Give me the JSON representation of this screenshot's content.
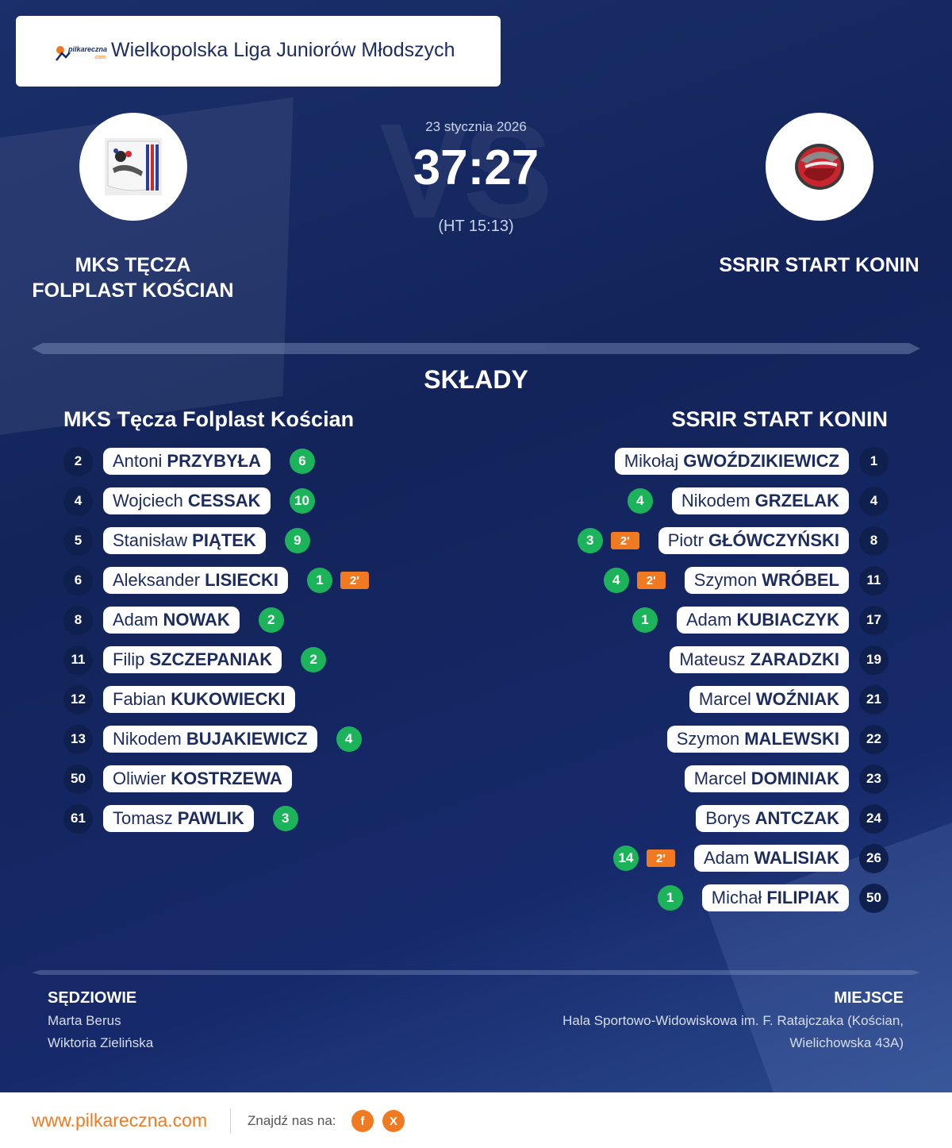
{
  "header": {
    "logo_text": "pilkareczna",
    "logo_sub": ".com",
    "league": "Wielkopolska Liga Juniorów Młodszych"
  },
  "match": {
    "date": "23 stycznia 2026",
    "score": "37:27",
    "halftime": "(HT 15:13)",
    "vs_watermark": "VS",
    "home_team": [
      "MKS TĘCZA",
      "FOLPLAST KOŚCIAN"
    ],
    "away_team": "SSRIR START KONIN"
  },
  "lineups": {
    "title": "SKŁADY",
    "home_title": "MKS Tęcza Folplast Kościan",
    "away_title": "SSRIR START KONIN",
    "home": [
      {
        "number": "2",
        "first": "Antoni",
        "last": "PRZYBYŁA",
        "goals": "6",
        "susp": ""
      },
      {
        "number": "4",
        "first": "Wojciech",
        "last": "CESSAK",
        "goals": "10",
        "susp": ""
      },
      {
        "number": "5",
        "first": "Stanisław",
        "last": "PIĄTEK",
        "goals": "9",
        "susp": ""
      },
      {
        "number": "6",
        "first": "Aleksander",
        "last": "LISIECKI",
        "goals": "1",
        "susp": "2'"
      },
      {
        "number": "8",
        "first": "Adam",
        "last": "NOWAK",
        "goals": "2",
        "susp": ""
      },
      {
        "number": "11",
        "first": "Filip",
        "last": "SZCZEPANIAK",
        "goals": "2",
        "susp": ""
      },
      {
        "number": "12",
        "first": "Fabian",
        "last": "KUKOWIECKI",
        "goals": "",
        "susp": ""
      },
      {
        "number": "13",
        "first": "Nikodem",
        "last": "BUJAKIEWICZ",
        "goals": "4",
        "susp": ""
      },
      {
        "number": "50",
        "first": "Oliwier",
        "last": "KOSTRZEWA",
        "goals": "",
        "susp": ""
      },
      {
        "number": "61",
        "first": "Tomasz",
        "last": "PAWLIK",
        "goals": "3",
        "susp": ""
      }
    ],
    "away": [
      {
        "number": "1",
        "first": "Mikołaj",
        "last": "GWOŹDZIKIEWICZ",
        "goals": "",
        "susp": ""
      },
      {
        "number": "4",
        "first": "Nikodem",
        "last": "GRZELAK",
        "goals": "4",
        "susp": ""
      },
      {
        "number": "8",
        "first": "Piotr",
        "last": "GŁÓWCZYŃSKI",
        "goals": "3",
        "susp": "2'"
      },
      {
        "number": "11",
        "first": "Szymon",
        "last": "WRÓBEL",
        "goals": "4",
        "susp": "2'"
      },
      {
        "number": "17",
        "first": "Adam",
        "last": "KUBIACZYK",
        "goals": "1",
        "susp": ""
      },
      {
        "number": "19",
        "first": "Mateusz",
        "last": "ZARADZKI",
        "goals": "",
        "susp": ""
      },
      {
        "number": "21",
        "first": "Marcel",
        "last": "WOŹNIAK",
        "goals": "",
        "susp": ""
      },
      {
        "number": "22",
        "first": "Szymon",
        "last": "MALEWSKI",
        "goals": "",
        "susp": ""
      },
      {
        "number": "23",
        "first": "Marcel",
        "last": "DOMINIAK",
        "goals": "",
        "susp": ""
      },
      {
        "number": "24",
        "first": "Borys",
        "last": "ANTCZAK",
        "goals": "",
        "susp": ""
      },
      {
        "number": "26",
        "first": "Adam",
        "last": "WALISIAK",
        "goals": "14",
        "susp": "2'"
      },
      {
        "number": "50",
        "first": "Michał",
        "last": "FILIPIAK",
        "goals": "1",
        "susp": ""
      }
    ]
  },
  "footer": {
    "referees_label": "SĘDZIOWIE",
    "referees": [
      "Marta Berus",
      "Wiktoria Zielińska"
    ],
    "venue_label": "MIEJSCE",
    "venue_lines": [
      "Hala Sportowo-Widowiskowa im. F. Ratajczaka (Kościan,",
      "Wielichowska 43A)"
    ]
  },
  "bottom": {
    "site": "www.pilkareczna.com",
    "follow": "Znajdź nas na:",
    "facebook": "f",
    "x": "X"
  },
  "colors": {
    "background": "#14285e",
    "goal_badge": "#1db35a",
    "suspension_badge": "#f07a22",
    "accent": "#f07a22"
  },
  "icons": [
    "pilkareczna-logo",
    "home-crest",
    "away-crest",
    "facebook-icon",
    "x-icon"
  ]
}
